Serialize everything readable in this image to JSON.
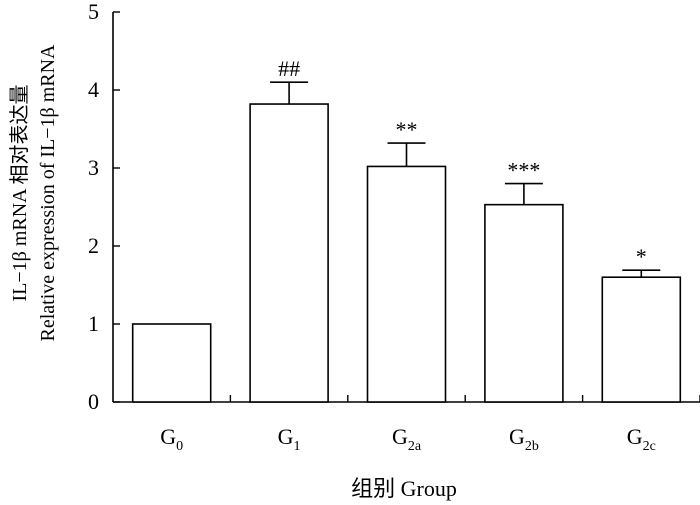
{
  "chart_data": {
    "type": "bar",
    "categories": [
      {
        "base": "G",
        "sub": "0"
      },
      {
        "base": "G",
        "sub": "1"
      },
      {
        "base": "G",
        "sub": "2a"
      },
      {
        "base": "G",
        "sub": "2b"
      },
      {
        "base": "G",
        "sub": "2c"
      }
    ],
    "values": [
      1.0,
      3.82,
      3.02,
      2.53,
      1.6
    ],
    "errors": [
      0.0,
      0.28,
      0.3,
      0.27,
      0.09
    ],
    "annotations": [
      "",
      "##",
      "**",
      "***",
      "*"
    ],
    "xlabel": "组别 Group",
    "ylabel_line1": "IL−1β mRNA 相对表达量",
    "ylabel_line2": "Relative expression of IL−1β mRNA",
    "ylim": [
      0,
      5
    ],
    "yticks": [
      "0",
      "1",
      "2",
      "3",
      "4",
      "5"
    ],
    "grid": false,
    "legend": "none",
    "bar_fill": "#ffffff",
    "bar_stroke": "#000000"
  }
}
